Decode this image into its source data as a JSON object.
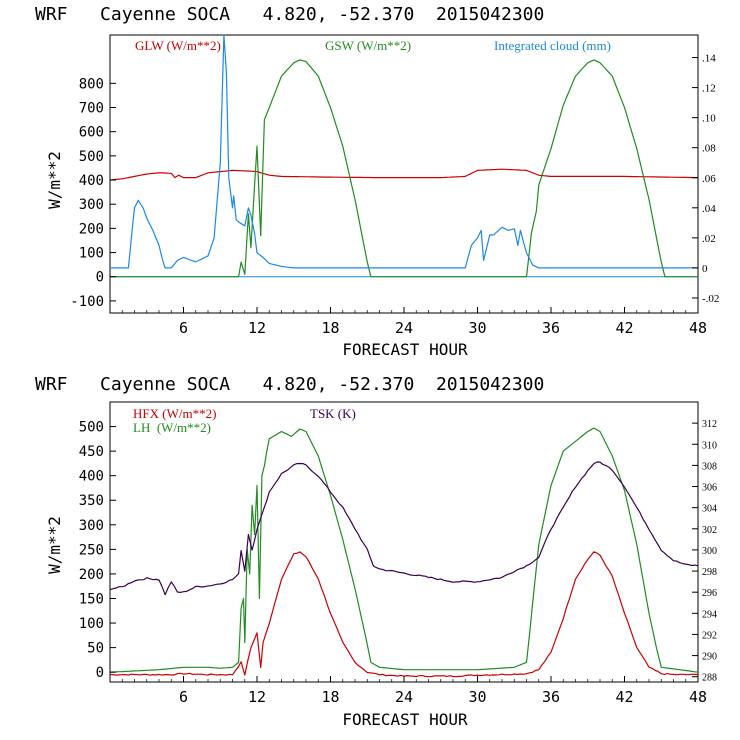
{
  "chart_data": [
    {
      "type": "line",
      "title": "WRF   Cayenne SOCA   4.820, -52.370  2015042300",
      "xlabel": "FORECAST HOUR",
      "ylabel": "W/m**2",
      "xlim": [
        0,
        48
      ],
      "ylim": [
        -150,
        1000
      ],
      "y2lim": [
        -0.03,
        0.155
      ],
      "xticks": [
        "6",
        "12",
        "18",
        "24",
        "30",
        "36",
        "42",
        "48"
      ],
      "yticks": [
        "-100",
        "0",
        "100",
        "200",
        "300",
        "400",
        "500",
        "600",
        "700",
        "800"
      ],
      "y2ticks": [
        "-.02",
        "0",
        ".02",
        ".04",
        ".06",
        ".08",
        ".10",
        ".12",
        ".14"
      ],
      "legend": [
        {
          "label": "GLW (W/m**2)",
          "color": "#cc0000"
        },
        {
          "label": "GSW (W/m**2)",
          "color": "#228b22"
        },
        {
          "label": "Integrated cloud (mm)",
          "color": "#1e88e5"
        }
      ],
      "series": [
        {
          "name": "GLW (W/m**2)",
          "axis": "left",
          "color": "#cc0000",
          "x": [
            0,
            1,
            2,
            3,
            4,
            5,
            5.3,
            5.6,
            6,
            7,
            8,
            9,
            10,
            11,
            12,
            13,
            14,
            18,
            22,
            24,
            27,
            29,
            30,
            32,
            34,
            35,
            36,
            42,
            48
          ],
          "y": [
            400,
            405,
            415,
            425,
            430,
            428,
            410,
            420,
            410,
            410,
            430,
            435,
            440,
            438,
            435,
            420,
            415,
            412,
            410,
            410,
            410,
            415,
            440,
            445,
            440,
            420,
            415,
            415,
            410
          ]
        },
        {
          "name": "GSW (W/m**2)",
          "axis": "left",
          "color": "#228b22",
          "x": [
            0,
            10.5,
            10.7,
            11,
            11.3,
            11.5,
            11.8,
            12,
            12.3,
            12.6,
            13,
            14,
            15,
            15.5,
            16,
            17,
            18,
            19,
            20,
            21,
            21.3,
            34,
            34.4,
            34.8,
            35,
            36,
            37,
            38,
            39,
            39.5,
            40,
            41,
            42,
            43,
            44,
            45,
            45.3,
            48
          ],
          "y": [
            0,
            0,
            60,
            10,
            260,
            120,
            380,
            540,
            170,
            650,
            700,
            830,
            885,
            897,
            890,
            830,
            700,
            540,
            320,
            60,
            0,
            0,
            180,
            270,
            380,
            530,
            710,
            830,
            885,
            897,
            885,
            830,
            700,
            530,
            320,
            60,
            0,
            0
          ]
        },
        {
          "name": "Integrated cloud (mm)",
          "axis": "right",
          "color": "#1e88e5",
          "x": [
            0,
            1.5,
            1.8,
            2,
            2.3,
            2.7,
            3,
            3.5,
            4,
            4.3,
            4.5,
            5,
            5.5,
            6,
            7,
            8,
            8.5,
            9,
            9.3,
            9.5,
            9.7,
            10,
            10.1,
            10.3,
            10.6,
            11,
            11.3,
            11.5,
            11.8,
            12,
            12.5,
            13,
            14,
            15,
            29,
            29.5,
            30,
            30.3,
            30.5,
            31,
            31.3,
            32,
            32.5,
            33,
            33.3,
            33.5,
            34,
            34.5,
            35,
            48
          ],
          "y": [
            0,
            0,
            0.025,
            0.04,
            0.045,
            0.04,
            0.033,
            0.025,
            0.015,
            0.005,
            0,
            0,
            0.005,
            0.007,
            0.004,
            0.008,
            0.02,
            0.07,
            0.155,
            0.13,
            0.06,
            0.04,
            0.048,
            0.032,
            0.03,
            0.028,
            0.04,
            0.035,
            0.023,
            0.01,
            0.007,
            0.003,
            0.001,
            0,
            0,
            0.015,
            0.02,
            0.025,
            0.005,
            0.022,
            0.022,
            0.027,
            0.025,
            0.026,
            0.015,
            0.025,
            0.01,
            0.002,
            0,
            0
          ]
        }
      ]
    },
    {
      "type": "line",
      "title": "WRF   Cayenne SOCA   4.820, -52.370  2015042300",
      "xlabel": "FORECAST HOUR",
      "ylabel": "W/m**2",
      "xlim": [
        0,
        48
      ],
      "ylim": [
        -20,
        550
      ],
      "y2lim": [
        287.5,
        314
      ],
      "xticks": [
        "6",
        "12",
        "18",
        "24",
        "30",
        "36",
        "42",
        "48"
      ],
      "yticks": [
        "0",
        "50",
        "100",
        "150",
        "200",
        "250",
        "300",
        "350",
        "400",
        "450",
        "500"
      ],
      "y2ticks": [
        "288",
        "290",
        "292",
        "294",
        "296",
        "298",
        "300",
        "302",
        "304",
        "306",
        "308",
        "310",
        "312"
      ],
      "legend": [
        {
          "label": "HFX (W/m**2)",
          "color": "#cc0000"
        },
        {
          "label": "LH  (W/m**2)",
          "color": "#228b22"
        },
        {
          "label": "TSK (K)",
          "color": "#3a0050"
        }
      ],
      "series": [
        {
          "name": "HFX (W/m**2)",
          "axis": "left",
          "color": "#cc0000",
          "x": [
            0,
            5,
            6,
            8,
            10,
            10.7,
            11,
            11.5,
            12,
            12.3,
            12.5,
            13,
            14,
            15,
            15.5,
            16,
            17,
            18,
            19,
            20,
            21,
            22,
            24,
            28,
            30,
            33,
            34,
            35,
            36,
            37,
            38,
            39,
            39.5,
            40,
            41,
            42,
            43,
            44,
            45,
            46,
            48
          ],
          "y": [
            -5,
            -5,
            -3,
            -5,
            -5,
            20,
            -5,
            50,
            80,
            10,
            60,
            100,
            190,
            240,
            245,
            235,
            190,
            120,
            60,
            20,
            0,
            -5,
            -8,
            -8,
            -6,
            -4,
            -3,
            5,
            40,
            110,
            190,
            230,
            245,
            238,
            195,
            120,
            50,
            10,
            -3,
            -5,
            -5
          ],
          "noise": true
        },
        {
          "name": "LH  (W/m**2)",
          "axis": "left",
          "color": "#228b22",
          "x": [
            0,
            4,
            6,
            8,
            9,
            10,
            10.5,
            10.7,
            10.9,
            11,
            11.2,
            11.4,
            11.6,
            11.8,
            12,
            12.2,
            12.4,
            12.6,
            12.8,
            13,
            14,
            14.8,
            15.5,
            16,
            17,
            18,
            19,
            20,
            20.8,
            21.3,
            22,
            24,
            30,
            33,
            34,
            34.3,
            34.5,
            35,
            36,
            37,
            38,
            39,
            39.5,
            40,
            41,
            42,
            43,
            44,
            44.6,
            45,
            48
          ],
          "y": [
            0,
            5,
            10,
            10,
            8,
            10,
            20,
            130,
            150,
            60,
            250,
            200,
            340,
            280,
            380,
            150,
            400,
            420,
            450,
            475,
            490,
            480,
            495,
            490,
            440,
            360,
            270,
            170,
            80,
            20,
            10,
            5,
            5,
            10,
            20,
            90,
            140,
            260,
            380,
            450,
            470,
            490,
            497,
            490,
            440,
            370,
            260,
            120,
            50,
            10,
            0
          ]
        },
        {
          "name": "TSK (K)",
          "axis": "right",
          "color": "#3a0050",
          "x": [
            0,
            1,
            1.5,
            2,
            3,
            4,
            4.5,
            5,
            5.5,
            6,
            7,
            8,
            9,
            10,
            10.5,
            10.7,
            11,
            11.3,
            11.6,
            12,
            12.3,
            12.6,
            13,
            14,
            15,
            15.5,
            16,
            17,
            18,
            19,
            20,
            21,
            21.5,
            22,
            24,
            26,
            28,
            30,
            32,
            33,
            34,
            35,
            36,
            37,
            38,
            39,
            39.5,
            40,
            41,
            42,
            43,
            44,
            45,
            46,
            47,
            48
          ],
          "y": [
            296.3,
            296.5,
            296.8,
            297.1,
            297.3,
            297.2,
            295.8,
            297,
            296,
            296,
            296.5,
            296.6,
            296.8,
            297.2,
            297.7,
            300,
            298,
            301.5,
            300,
            302,
            303,
            304,
            305.5,
            307.2,
            308,
            308.2,
            308,
            307,
            305.5,
            304,
            302,
            300,
            298.5,
            298.2,
            297.8,
            297.4,
            297,
            297,
            297.4,
            298,
            298.5,
            299.3,
            302,
            304,
            306,
            307.5,
            308.2,
            308.3,
            307.6,
            306,
            304,
            302,
            300,
            299,
            298.6,
            298.5
          ],
          "noise": true
        }
      ]
    }
  ]
}
